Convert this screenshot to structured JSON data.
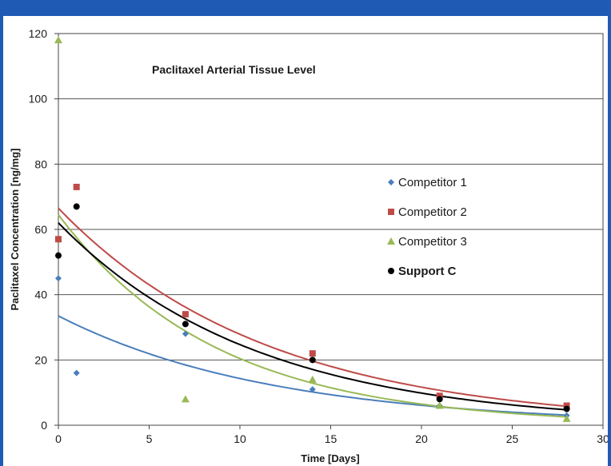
{
  "chart_data": {
    "type": "scatter",
    "title": "Paclitaxel Arterial Tissue Level",
    "xlabel": "Time [Days]",
    "ylabel": "Paclitaxel Concentration [ng/mg]",
    "xlim": [
      0,
      30
    ],
    "ylim": [
      0,
      120
    ],
    "xticks": [
      0,
      5,
      10,
      15,
      20,
      25,
      30
    ],
    "yticks": [
      0,
      20,
      40,
      60,
      80,
      100,
      120
    ],
    "grid": "horizontal",
    "legend_position": "right",
    "series": [
      {
        "name": "Competitor 1",
        "marker": "diamond",
        "color": "#4a7ebb",
        "points": [
          [
            0,
            45
          ],
          [
            1,
            16
          ],
          [
            7,
            28
          ],
          [
            14,
            11
          ],
          [
            21,
            6
          ],
          [
            28,
            3
          ]
        ],
        "trend": {
          "a": 33.5,
          "k": 0.085
        }
      },
      {
        "name": "Competitor 2",
        "marker": "square",
        "color": "#be4b48",
        "points": [
          [
            0,
            57
          ],
          [
            1,
            73
          ],
          [
            7,
            34
          ],
          [
            14,
            22
          ],
          [
            21,
            9
          ],
          [
            28,
            6
          ]
        ],
        "trend": {
          "a": 66.5,
          "k": 0.087
        }
      },
      {
        "name": "Competitor 3",
        "marker": "triangle",
        "color": "#98b954",
        "points": [
          [
            0,
            118
          ],
          [
            7,
            8
          ],
          [
            14,
            14
          ],
          [
            21,
            6
          ],
          [
            28,
            2
          ]
        ],
        "trend": {
          "a": 64.5,
          "k": 0.115
        }
      },
      {
        "name": "Support C",
        "marker": "circle",
        "color": "#000000",
        "bold": true,
        "points": [
          [
            0,
            52
          ],
          [
            1,
            67
          ],
          [
            7,
            31
          ],
          [
            14,
            20
          ],
          [
            21,
            8
          ],
          [
            28,
            5
          ]
        ],
        "trend": {
          "a": 62,
          "k": 0.092
        }
      }
    ]
  }
}
